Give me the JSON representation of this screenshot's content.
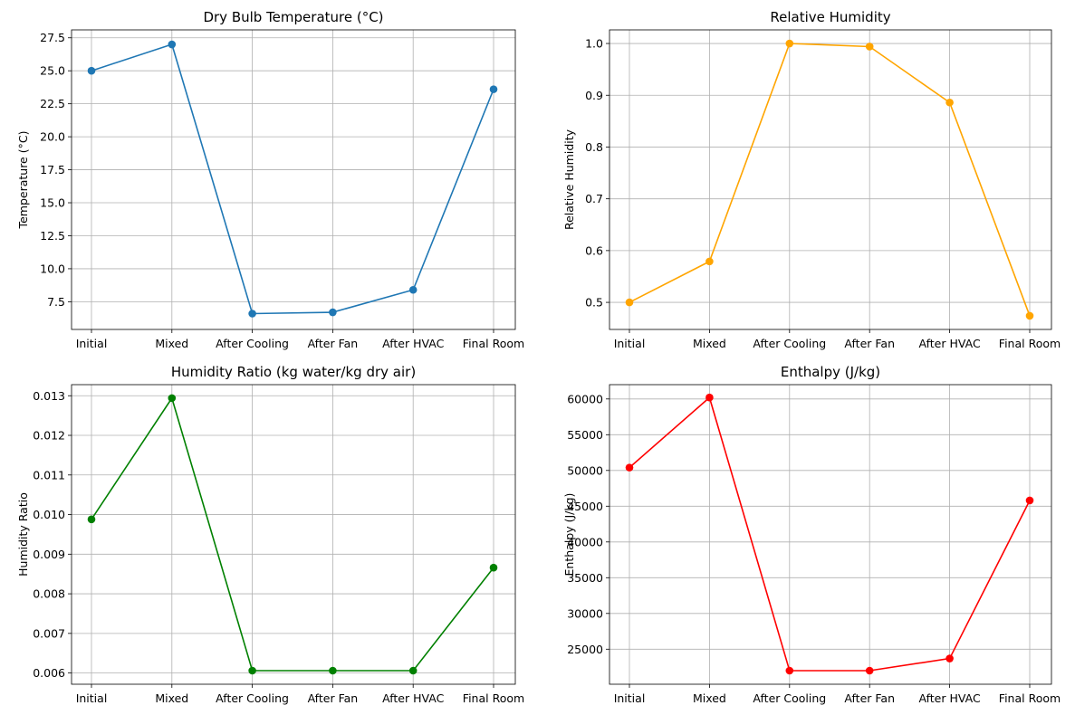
{
  "chart_data": [
    {
      "type": "line",
      "title": "Dry Bulb Temperature (°C)",
      "xlabel": "",
      "ylabel": "Temperature (°C)",
      "categories": [
        "Initial",
        "Mixed",
        "After Cooling",
        "After Fan",
        "After HVAC",
        "Final Room"
      ],
      "values": [
        25.0,
        27.0,
        6.6,
        6.7,
        8.4,
        23.6
      ],
      "ylim": [
        5.4,
        28.1
      ],
      "yticks": [
        "7.5",
        "10.0",
        "12.5",
        "15.0",
        "17.5",
        "20.0",
        "22.5",
        "25.0",
        "27.5"
      ],
      "color": "#1f77b4",
      "grid": true
    },
    {
      "type": "line",
      "title": "Relative Humidity",
      "xlabel": "",
      "ylabel": "Relative Humidity",
      "categories": [
        "Initial",
        "Mixed",
        "After Cooling",
        "After Fan",
        "After HVAC",
        "Final Room"
      ],
      "values": [
        0.5,
        0.579,
        1.0,
        0.994,
        0.886,
        0.474
      ],
      "ylim": [
        0.4477,
        1.0263
      ],
      "yticks": [
        "0.5",
        "0.6",
        "0.7",
        "0.8",
        "0.9",
        "1.0"
      ],
      "color": "#ffa500",
      "grid": true
    },
    {
      "type": "line",
      "title": "Humidity Ratio (kg water/kg dry air)",
      "xlabel": "",
      "ylabel": "Humidity Ratio",
      "categories": [
        "Initial",
        "Mixed",
        "After Cooling",
        "After Fan",
        "After HVAC",
        "Final Room"
      ],
      "values": [
        0.00988,
        0.01294,
        0.00606,
        0.00606,
        0.00606,
        0.00866
      ],
      "ylim": [
        0.005717,
        0.01328
      ],
      "yticks": [
        "0.006",
        "0.007",
        "0.008",
        "0.009",
        "0.010",
        "0.011",
        "0.012",
        "0.013"
      ],
      "color": "#008000",
      "grid": true
    },
    {
      "type": "line",
      "title": "Enthalpy (J/kg)",
      "xlabel": "",
      "ylabel": "Enthalpy (J/kg)",
      "categories": [
        "Initial",
        "Mixed",
        "After Cooling",
        "After Fan",
        "After HVAC",
        "Final Room"
      ],
      "values": [
        50400,
        60200,
        22000,
        22000,
        23700,
        45800
      ],
      "ylim": [
        20100,
        62000
      ],
      "yticks": [
        "25000",
        "30000",
        "35000",
        "40000",
        "45000",
        "50000",
        "55000",
        "60000"
      ],
      "color": "#ff0000",
      "grid": true
    }
  ]
}
